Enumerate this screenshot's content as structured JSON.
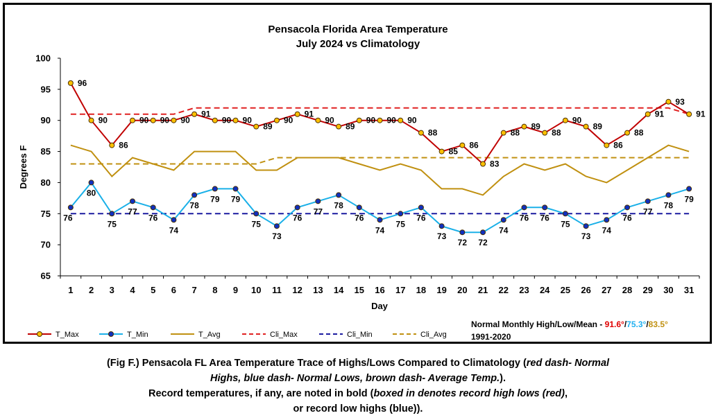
{
  "chart_data": {
    "type": "line",
    "title": "Pensacola Florida Area Temperature",
    "subtitle": "July 2024 vs Climatology",
    "xlabel": "Day",
    "ylabel": "Degrees F",
    "ylim": [
      65,
      100
    ],
    "yticks": [
      65,
      70,
      75,
      80,
      85,
      90,
      95,
      100
    ],
    "x": [
      1,
      2,
      3,
      4,
      5,
      6,
      7,
      8,
      9,
      10,
      11,
      12,
      13,
      14,
      15,
      16,
      17,
      18,
      19,
      20,
      21,
      22,
      23,
      24,
      25,
      26,
      27,
      28,
      29,
      30,
      31
    ],
    "grid": false,
    "legend_position": "bottom",
    "series": [
      {
        "name": "T_Max",
        "color": "#c00000",
        "marker": "#ffc000",
        "style": "solid",
        "labels": true,
        "values": [
          96,
          90,
          86,
          90,
          90,
          90,
          91,
          90,
          90,
          89,
          90,
          91,
          90,
          89,
          90,
          90,
          90,
          88,
          85,
          86,
          83,
          88,
          89,
          88,
          90,
          89,
          86,
          88,
          91,
          93,
          91
        ]
      },
      {
        "name": "T_Min",
        "color": "#1ab0e8",
        "marker": "#1030c0",
        "style": "solid",
        "labels": true,
        "values": [
          76,
          80,
          75,
          77,
          76,
          74,
          78,
          79,
          79,
          75,
          73,
          76,
          77,
          78,
          76,
          74,
          75,
          76,
          73,
          72,
          72,
          74,
          76,
          76,
          75,
          73,
          74,
          76,
          77,
          78,
          79
        ]
      },
      {
        "name": "T_Avg",
        "color": "#c09010",
        "style": "solid",
        "labels": false,
        "values": [
          86,
          85,
          81,
          84,
          83,
          82,
          85,
          85,
          85,
          82,
          82,
          84,
          84,
          84,
          83,
          82,
          83,
          82,
          79,
          79,
          78,
          81,
          83,
          82,
          83,
          81,
          80,
          82,
          84,
          86,
          85
        ]
      },
      {
        "name": "Cli_Max",
        "color": "#e02020",
        "style": "dashed",
        "labels": false,
        "values": [
          91,
          91,
          91,
          91,
          91,
          91,
          92,
          92,
          92,
          92,
          92,
          92,
          92,
          92,
          92,
          92,
          92,
          92,
          92,
          92,
          92,
          92,
          92,
          92,
          92,
          92,
          92,
          92,
          92,
          92,
          91
        ]
      },
      {
        "name": "Cli_Min",
        "color": "#1a1aa0",
        "style": "dashed",
        "labels": false,
        "values": [
          75,
          75,
          75,
          75,
          75,
          75,
          75,
          75,
          75,
          75,
          75,
          75,
          75,
          75,
          75,
          75,
          75,
          75,
          75,
          75,
          75,
          75,
          75,
          75,
          75,
          75,
          75,
          75,
          75,
          75,
          75
        ]
      },
      {
        "name": "Cli_Avg",
        "color": "#c09010",
        "style": "dashed",
        "labels": false,
        "values": [
          83,
          83,
          83,
          83,
          83,
          83,
          83,
          83,
          83,
          83,
          84,
          84,
          84,
          84,
          84,
          84,
          84,
          84,
          84,
          84,
          84,
          84,
          84,
          84,
          84,
          84,
          84,
          84,
          84,
          84,
          84
        ]
      }
    ],
    "normals": {
      "label": "Normal Monthly High/Low/Mean - ",
      "high": "91.6°",
      "low": "75.3°",
      "mean": "83.5°",
      "sep": "/",
      "period": "1991-2020",
      "high_color": "#e00000",
      "low_color": "#20b0f0",
      "mean_color": "#c09010"
    }
  },
  "caption": {
    "line1_a": "(Fig F.) Pensacola FL Area Temperature Trace of Highs/Lows Compared to Climatology (",
    "line1_b": "red dash- Normal",
    "line2_a": "Highs, blue dash- Normal Lows, brown dash- Average Temp.",
    "line2_b": ").",
    "line3_a": "Record temperatures, if any, are noted in bold (",
    "line3_b": "boxed in denotes record high lows (red)",
    "line3_c": ",",
    "line4": "or record low highs (blue))."
  }
}
